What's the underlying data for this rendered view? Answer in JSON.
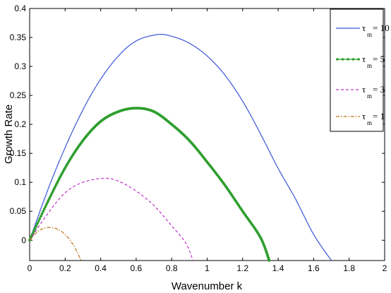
{
  "chart_data": {
    "type": "line",
    "xlabel": "Wavenumber k",
    "ylabel": "Growth Rate",
    "xlim": [
      0,
      2
    ],
    "ylim": [
      -0.035,
      0.4
    ],
    "xticks": [
      "0",
      "0.2",
      "0.4",
      "0.6",
      "0.8",
      "1",
      "1.2",
      "1.4",
      "1.6",
      "1.8",
      "2"
    ],
    "yticks": [
      "0",
      "0.05",
      "0.1",
      "0.15",
      "0.2",
      "0.25",
      "0.3",
      "0.35",
      "0.4"
    ],
    "legend_position": "top-right",
    "series": [
      {
        "name": "τm = 10",
        "legend_symbol": "τ",
        "legend_sub": "m",
        "legend_value": "= 10",
        "color": "#3a55d8",
        "style": "solid",
        "points": [
          [
            0,
            0
          ],
          [
            0.1,
            0.085
          ],
          [
            0.2,
            0.16
          ],
          [
            0.3,
            0.225
          ],
          [
            0.4,
            0.278
          ],
          [
            0.5,
            0.318
          ],
          [
            0.6,
            0.344
          ],
          [
            0.72,
            0.355
          ],
          [
            0.8,
            0.352
          ],
          [
            0.9,
            0.34
          ],
          [
            1.0,
            0.318
          ],
          [
            1.1,
            0.285
          ],
          [
            1.2,
            0.24
          ],
          [
            1.3,
            0.184
          ],
          [
            1.4,
            0.124
          ],
          [
            1.5,
            0.07
          ],
          [
            1.6,
            0.01
          ],
          [
            1.7,
            -0.035
          ]
        ]
      },
      {
        "name": "τm = 5",
        "legend_symbol": "τ",
        "legend_sub": "m",
        "legend_value": "= 5",
        "color": "#2e9e2e",
        "style": "marker",
        "points": [
          [
            0,
            0
          ],
          [
            0.1,
            0.065
          ],
          [
            0.2,
            0.125
          ],
          [
            0.3,
            0.172
          ],
          [
            0.4,
            0.205
          ],
          [
            0.5,
            0.222
          ],
          [
            0.6,
            0.228
          ],
          [
            0.7,
            0.222
          ],
          [
            0.8,
            0.2
          ],
          [
            0.9,
            0.172
          ],
          [
            1.0,
            0.135
          ],
          [
            1.1,
            0.095
          ],
          [
            1.2,
            0.05
          ],
          [
            1.3,
            0.005
          ],
          [
            1.35,
            -0.035
          ]
        ]
      },
      {
        "name": "τm = 3",
        "legend_symbol": "τ",
        "legend_sub": "m",
        "legend_value": "= 3",
        "color": "#c030c8",
        "style": "dashed",
        "points": [
          [
            0,
            0
          ],
          [
            0.1,
            0.045
          ],
          [
            0.2,
            0.082
          ],
          [
            0.3,
            0.1
          ],
          [
            0.42,
            0.107
          ],
          [
            0.5,
            0.102
          ],
          [
            0.6,
            0.085
          ],
          [
            0.7,
            0.06
          ],
          [
            0.8,
            0.025
          ],
          [
            0.88,
            -0.005
          ],
          [
            0.92,
            -0.035
          ]
        ]
      },
      {
        "name": "τm = 1",
        "legend_symbol": "τ",
        "legend_sub": "m",
        "legend_value": "= 1",
        "color": "#b8701a",
        "style": "dashdot",
        "points": [
          [
            0,
            0
          ],
          [
            0.05,
            0.016
          ],
          [
            0.1,
            0.022
          ],
          [
            0.15,
            0.02
          ],
          [
            0.2,
            0.01
          ],
          [
            0.25,
            -0.01
          ],
          [
            0.29,
            -0.035
          ]
        ]
      }
    ]
  }
}
